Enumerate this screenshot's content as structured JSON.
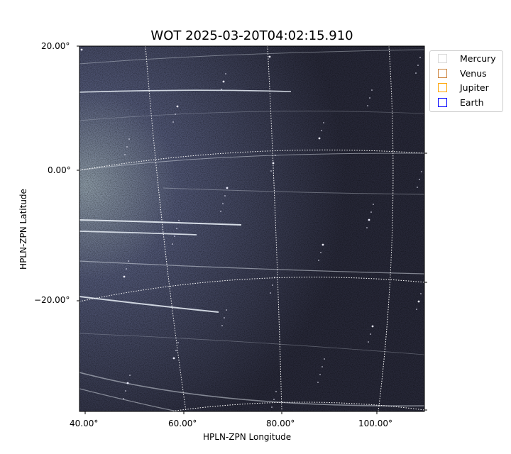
{
  "chart_data": {
    "type": "heatmap",
    "title": "WOT 2025-03-20T04:02:15.910",
    "xlabel": "HPLN-ZPN Longitude",
    "ylabel": "HPLN-ZPN Latitude",
    "x_ticks": [
      "40.00°",
      "60.00°",
      "80.00°",
      "100.00°"
    ],
    "y_ticks": [
      "20.00°",
      "0.00°",
      "−20.00°"
    ],
    "grid": true,
    "colormap": "bone",
    "legend_placement": "outside-top-right",
    "legend": [
      {
        "name": "Mercury",
        "color": "#d9d9d9"
      },
      {
        "name": "Venus",
        "color": "#cd853f"
      },
      {
        "name": "Jupiter",
        "color": "#ffa500"
      },
      {
        "name": "Earth",
        "color": "#0000ff"
      }
    ]
  }
}
